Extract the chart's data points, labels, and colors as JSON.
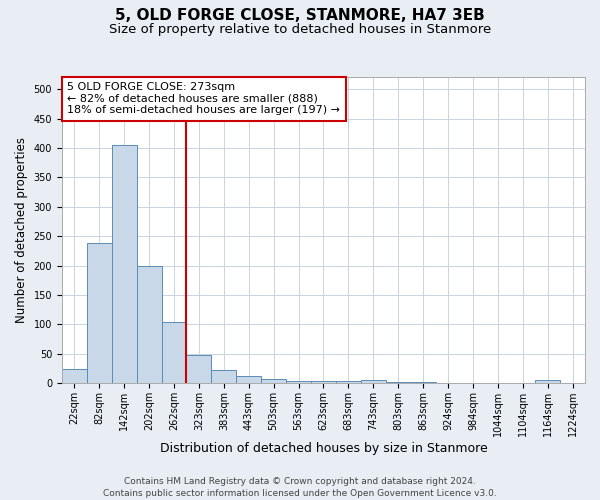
{
  "title": "5, OLD FORGE CLOSE, STANMORE, HA7 3EB",
  "subtitle": "Size of property relative to detached houses in Stanmore",
  "xlabel": "Distribution of detached houses by size in Stanmore",
  "ylabel": "Number of detached properties",
  "categories": [
    "22sqm",
    "82sqm",
    "142sqm",
    "202sqm",
    "262sqm",
    "323sqm",
    "383sqm",
    "443sqm",
    "503sqm",
    "563sqm",
    "623sqm",
    "683sqm",
    "743sqm",
    "803sqm",
    "863sqm",
    "924sqm",
    "984sqm",
    "1044sqm",
    "1104sqm",
    "1164sqm",
    "1224sqm"
  ],
  "values": [
    25,
    238,
    405,
    199,
    105,
    48,
    23,
    13,
    8,
    4,
    4,
    4,
    6,
    2,
    2,
    0,
    0,
    0,
    0,
    5,
    0
  ],
  "bar_color": "#c8d8e8",
  "bar_edge_color": "#5a8db5",
  "vline_x_index": 4,
  "vline_color": "#cc0000",
  "annotation_text": "5 OLD FORGE CLOSE: 273sqm\n← 82% of detached houses are smaller (888)\n18% of semi-detached houses are larger (197) →",
  "annotation_box_color": "#ffffff",
  "annotation_box_edge_color": "#cc0000",
  "ylim": [
    0,
    520
  ],
  "yticks": [
    0,
    50,
    100,
    150,
    200,
    250,
    300,
    350,
    400,
    450,
    500
  ],
  "fig_bg_color": "#e8eef4",
  "plot_bg_color": "#ffffff",
  "grid_color": "#c8d4e0",
  "title_fontsize": 11,
  "subtitle_fontsize": 9.5,
  "tick_fontsize": 7,
  "ylabel_fontsize": 8.5,
  "xlabel_fontsize": 9,
  "footer_fontsize": 6.5,
  "annotation_fontsize": 8,
  "footer_line1": "Contains HM Land Registry data © Crown copyright and database right 2024.",
  "footer_line2": "Contains public sector information licensed under the Open Government Licence v3.0."
}
